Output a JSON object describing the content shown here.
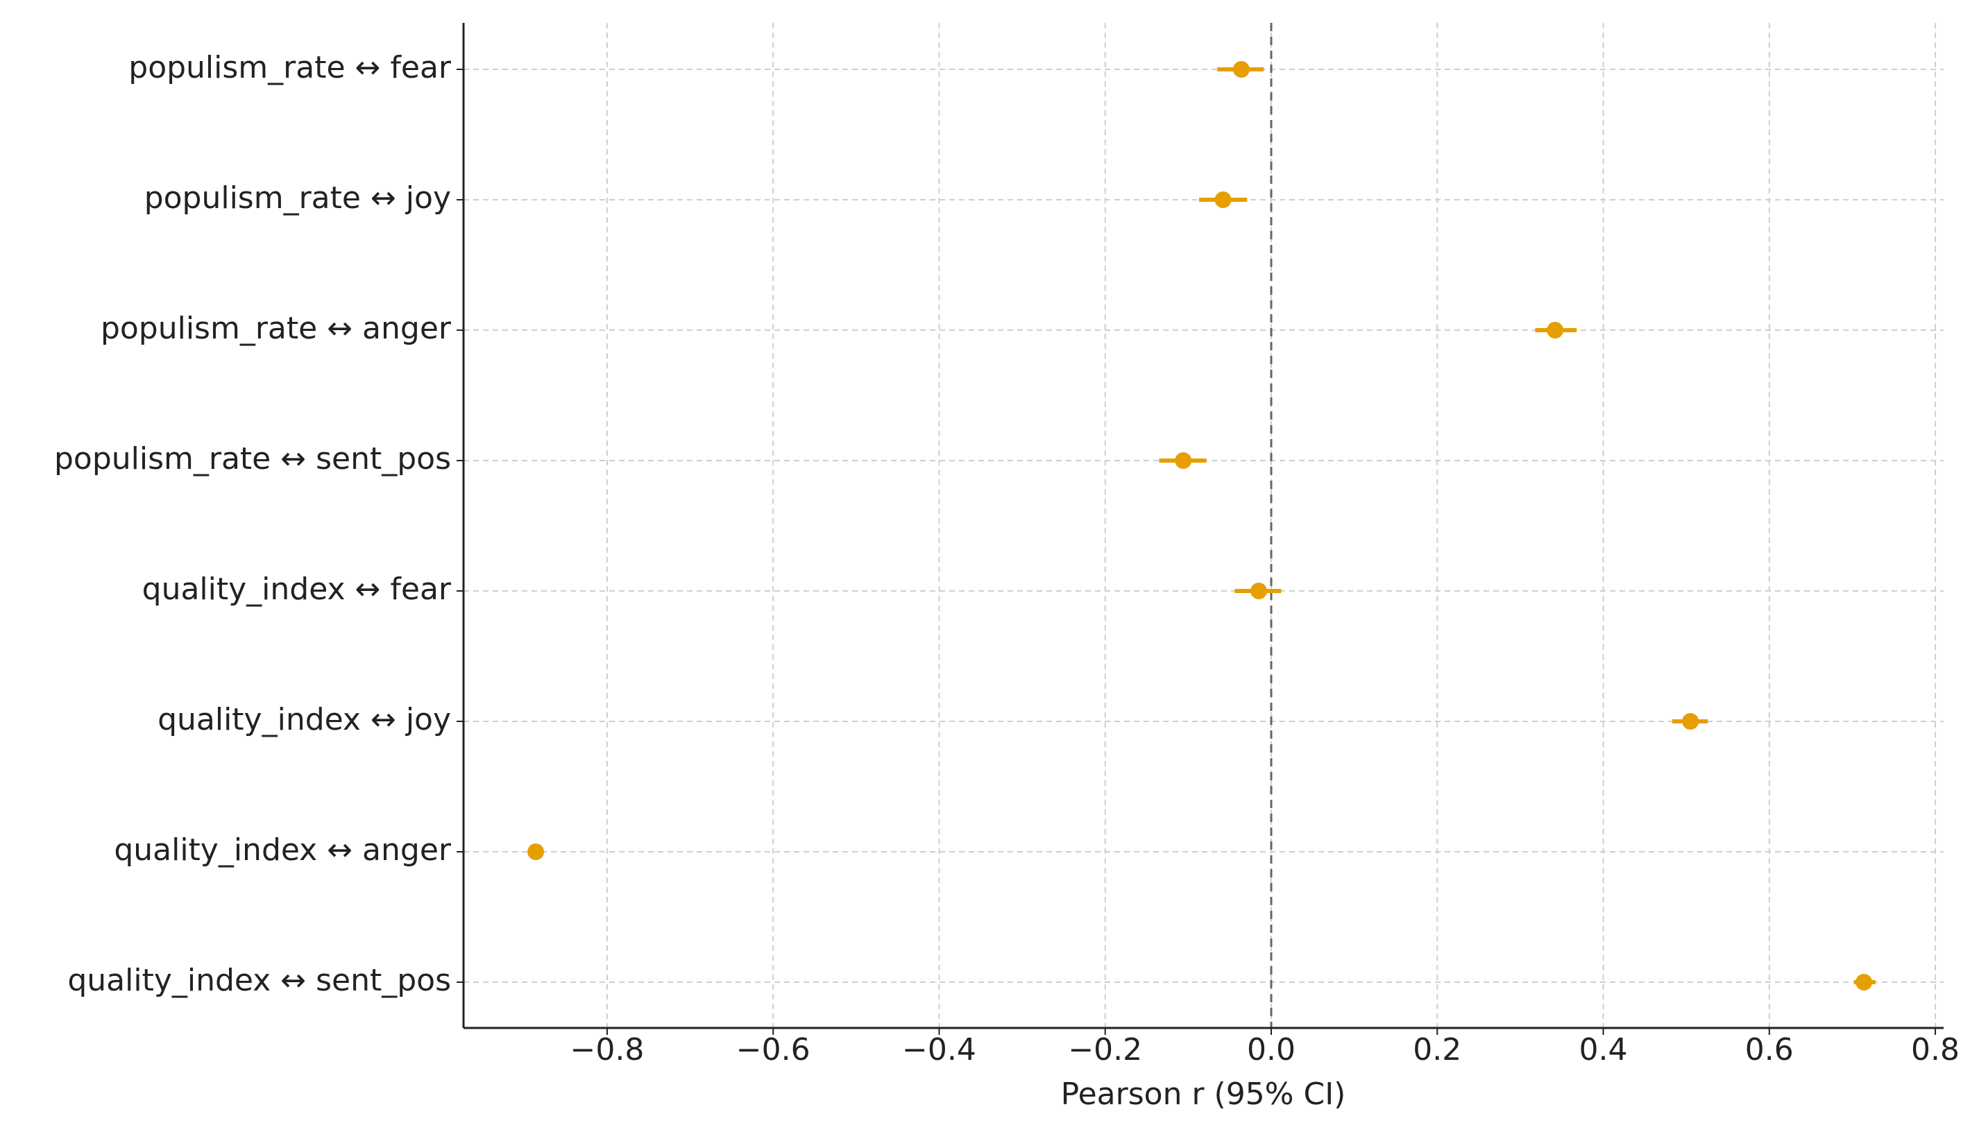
{
  "chart_data": {
    "type": "forest",
    "x_label": "Pearson r (95% CI)",
    "categories": [
      "populism_rate ↔ fear",
      "populism_rate ↔ joy",
      "populism_rate ↔ anger",
      "populism_rate ↔ sent_pos",
      "quality_index ↔ fear",
      "quality_index ↔ joy",
      "quality_index ↔ anger",
      "quality_index ↔ sent_pos"
    ],
    "values": [
      -0.036,
      -0.058,
      0.342,
      -0.106,
      -0.015,
      0.505,
      -0.886,
      0.714
    ],
    "ci_low": [
      -0.065,
      -0.087,
      0.318,
      -0.135,
      -0.044,
      0.483,
      -0.895,
      0.702
    ],
    "ci_high": [
      -0.009,
      -0.029,
      0.368,
      -0.078,
      0.012,
      0.526,
      -0.877,
      0.728
    ],
    "color": "#e69f00",
    "xlim": [
      -0.973,
      0.81
    ],
    "xticks": [
      {
        "value": -0.8,
        "label": "−0.8"
      },
      {
        "value": -0.6,
        "label": "−0.6"
      },
      {
        "value": -0.4,
        "label": "−0.4"
      },
      {
        "value": -0.2,
        "label": "−0.2"
      },
      {
        "value": 0,
        "label": "0.0"
      },
      0.2,
      0.4,
      0.6,
      0.8
    ],
    "reference_x": 0,
    "grid": true
  }
}
